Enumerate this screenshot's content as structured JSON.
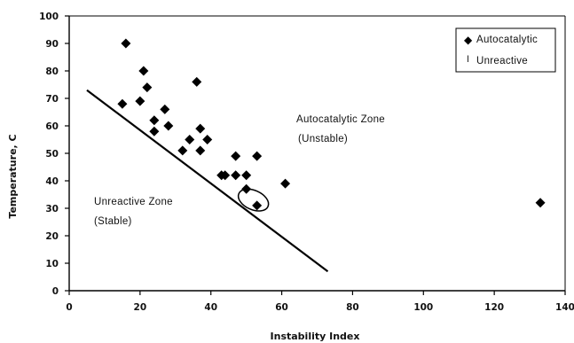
{
  "chart_data": {
    "type": "scatter",
    "xlabel": "Instability Index",
    "ylabel": "Temperature, C",
    "xlim": [
      0,
      140
    ],
    "ylim": [
      0,
      100
    ],
    "x_ticks": [
      "0",
      "20",
      "40",
      "60",
      "80",
      "100",
      "120",
      "140"
    ],
    "y_ticks": [
      "0",
      "10",
      "20",
      "30",
      "40",
      "50",
      "60",
      "70",
      "80",
      "90",
      "100"
    ],
    "grid": false,
    "legend_position": "top-right",
    "legend": [
      {
        "marker": "◆",
        "label": "Autocatalytic"
      },
      {
        "marker": "l",
        "label": "Unreactive"
      }
    ],
    "series": [
      {
        "name": "Autocatalytic",
        "color": "#000000",
        "marker": "diamond",
        "points": [
          {
            "x": 16,
            "y": 90
          },
          {
            "x": 15,
            "y": 68
          },
          {
            "x": 20,
            "y": 69
          },
          {
            "x": 21,
            "y": 80
          },
          {
            "x": 22,
            "y": 74
          },
          {
            "x": 24,
            "y": 62
          },
          {
            "x": 24,
            "y": 58
          },
          {
            "x": 27,
            "y": 66
          },
          {
            "x": 28,
            "y": 60
          },
          {
            "x": 32,
            "y": 51
          },
          {
            "x": 34,
            "y": 55
          },
          {
            "x": 36,
            "y": 76
          },
          {
            "x": 37,
            "y": 51
          },
          {
            "x": 37,
            "y": 59
          },
          {
            "x": 39,
            "y": 55
          },
          {
            "x": 43,
            "y": 42
          },
          {
            "x": 44,
            "y": 42
          },
          {
            "x": 47,
            "y": 49
          },
          {
            "x": 47,
            "y": 42
          },
          {
            "x": 50,
            "y": 42
          },
          {
            "x": 50,
            "y": 37
          },
          {
            "x": 53,
            "y": 49
          },
          {
            "x": 53,
            "y": 31
          },
          {
            "x": 61,
            "y": 39
          },
          {
            "x": 133,
            "y": 32
          }
        ]
      }
    ],
    "boundary_line": {
      "x": [
        5,
        73
      ],
      "y": [
        73,
        7
      ]
    },
    "highlight_ellipse": {
      "cx": 52,
      "cy": 33,
      "rx": 4.5,
      "ry": 3.5
    },
    "annotations": [
      {
        "lines": [
          "Autocatalytic Zone",
          "(Unstable)"
        ]
      },
      {
        "lines": [
          "Unreactive Zone",
          "(Stable)"
        ]
      }
    ]
  }
}
